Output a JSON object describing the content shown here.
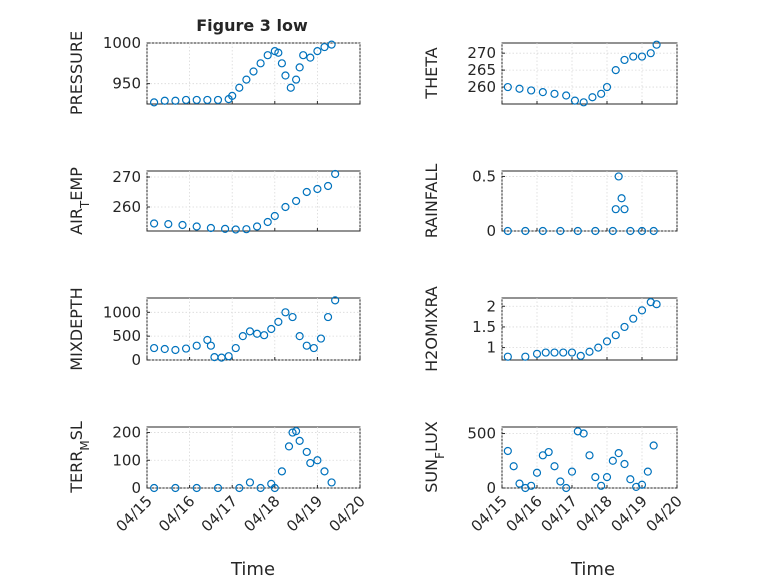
{
  "figure": {
    "title": "Figure 3 low"
  },
  "chart_data": [
    {
      "type": "scatter",
      "ylabel": "PRESSURE",
      "ylim": [
        925,
        1000
      ],
      "yticks": [
        "950",
        "1000"
      ],
      "ytick_values": [
        950,
        1000
      ],
      "color": "#0072BD",
      "x": [
        "04/15 04:00",
        "04/15 10:00",
        "04/15 16:00",
        "04/15 22:00",
        "04/16 04:00",
        "04/16 10:00",
        "04/16 16:00",
        "04/16 22:00",
        "04/17 00:00",
        "04/17 04:00",
        "04/17 08:00",
        "04/17 12:00",
        "04/17 16:00",
        "04/17 20:00",
        "04/18 00:00",
        "04/18 02:00",
        "04/18 04:00",
        "04/18 06:00",
        "04/18 09:00",
        "04/18 12:00",
        "04/18 14:00",
        "04/18 16:00",
        "04/18 20:00",
        "04/19 00:00",
        "04/19 04:00",
        "04/19 08:00"
      ],
      "y": [
        927,
        929,
        929,
        930,
        930,
        930,
        930,
        931,
        935,
        945,
        955,
        965,
        975,
        985,
        990,
        988,
        975,
        960,
        945,
        955,
        970,
        985,
        982,
        990,
        995,
        998
      ]
    },
    {
      "type": "scatter",
      "ylabel": "THETA",
      "ylim": [
        255,
        273
      ],
      "yticks": [
        "260",
        "265",
        "270"
      ],
      "ytick_values": [
        260,
        265,
        270
      ],
      "color": "#0072BD",
      "x": [
        "04/15 04:00",
        "04/15 12:00",
        "04/15 20:00",
        "04/16 04:00",
        "04/16 12:00",
        "04/16 20:00",
        "04/17 02:00",
        "04/17 08:00",
        "04/17 14:00",
        "04/17 20:00",
        "04/18 00:00",
        "04/18 06:00",
        "04/18 12:00",
        "04/18 18:00",
        "04/19 00:00",
        "04/19 06:00",
        "04/19 10:00"
      ],
      "y": [
        260,
        259.5,
        259,
        258.5,
        258,
        257.5,
        256,
        255.5,
        257,
        258,
        260,
        265,
        268,
        269,
        269,
        270,
        272.5
      ]
    },
    {
      "type": "scatter",
      "ylabel": "AIR_TEMP",
      "ylim": [
        252,
        272
      ],
      "yticks": [
        "260",
        "270"
      ],
      "ytick_values": [
        260,
        270
      ],
      "color": "#0072BD",
      "x": [
        "04/15 04:00",
        "04/15 12:00",
        "04/15 20:00",
        "04/16 04:00",
        "04/16 12:00",
        "04/16 20:00",
        "04/17 02:00",
        "04/17 08:00",
        "04/17 14:00",
        "04/17 20:00",
        "04/18 00:00",
        "04/18 06:00",
        "04/18 12:00",
        "04/18 18:00",
        "04/19 00:00",
        "04/19 06:00",
        "04/19 10:00"
      ],
      "y": [
        254.5,
        254.3,
        254,
        253.5,
        253,
        252.7,
        252.5,
        252.6,
        253.5,
        255,
        257,
        260,
        262,
        265,
        266,
        267,
        271
      ]
    },
    {
      "type": "scatter",
      "ylabel": "MIXDEPTH",
      "ylim": [
        0,
        1300
      ],
      "yticks": [
        "0",
        "500",
        "1000"
      ],
      "ytick_values": [
        0,
        500,
        1000
      ],
      "color": "#0072BD",
      "x": [
        "04/15 04:00",
        "04/15 10:00",
        "04/15 16:00",
        "04/15 22:00",
        "04/16 04:00",
        "04/16 10:00",
        "04/16 12:00",
        "04/16 14:00",
        "04/16 18:00",
        "04/16 22:00",
        "04/17 02:00",
        "04/17 06:00",
        "04/17 10:00",
        "04/17 14:00",
        "04/17 18:00",
        "04/17 22:00",
        "04/18 02:00",
        "04/18 06:00",
        "04/18 10:00",
        "04/18 14:00",
        "04/18 18:00",
        "04/18 22:00",
        "04/19 02:00",
        "04/19 06:00",
        "04/19 10:00"
      ],
      "y": [
        250,
        230,
        210,
        240,
        300,
        420,
        300,
        60,
        50,
        80,
        250,
        500,
        600,
        550,
        520,
        650,
        800,
        1000,
        900,
        500,
        300,
        250,
        450,
        900,
        1250
      ]
    },
    {
      "type": "scatter",
      "ylabel": "H2OMIXRA",
      "ylim": [
        0.7,
        2.2
      ],
      "yticks": [
        "1",
        "1.5",
        "2"
      ],
      "ytick_values": [
        1,
        1.5,
        2
      ],
      "color": "#0072BD",
      "x": [
        "04/15 04:00",
        "04/15 16:00",
        "04/16 00:00",
        "04/16 06:00",
        "04/16 12:00",
        "04/16 18:00",
        "04/17 00:00",
        "04/17 06:00",
        "04/17 12:00",
        "04/17 18:00",
        "04/18 00:00",
        "04/18 06:00",
        "04/18 12:00",
        "04/18 18:00",
        "04/19 00:00",
        "04/19 06:00",
        "04/19 10:00"
      ],
      "y": [
        0.78,
        0.78,
        0.85,
        0.88,
        0.88,
        0.88,
        0.88,
        0.8,
        0.9,
        1.0,
        1.15,
        1.3,
        1.5,
        1.7,
        1.9,
        2.1,
        2.05
      ]
    },
    {
      "type": "scatter",
      "ylabel": "RAINFALL",
      "ylim": [
        0,
        0.55
      ],
      "yticks": [
        "0",
        "0.5"
      ],
      "ytick_values": [
        0,
        0.5
      ],
      "color": "#0072BD",
      "x": [
        "04/15 04:00",
        "04/15 16:00",
        "04/16 04:00",
        "04/16 16:00",
        "04/17 04:00",
        "04/17 16:00",
        "04/18 04:00",
        "04/18 06:00",
        "04/18 08:00",
        "04/18 10:00",
        "04/18 12:00",
        "04/18 16:00",
        "04/19 00:00",
        "04/19 08:00"
      ],
      "y": [
        0,
        0,
        0,
        0,
        0,
        0,
        0,
        0.2,
        0.5,
        0.3,
        0.2,
        0,
        0,
        0
      ]
    },
    {
      "type": "scatter",
      "ylabel": "TERR_MSL",
      "ylim": [
        0,
        220
      ],
      "yticks": [
        "0",
        "100",
        "200"
      ],
      "ytick_values": [
        0,
        100,
        200
      ],
      "color": "#0072BD",
      "x": [
        "04/15 04:00",
        "04/15 16:00",
        "04/16 04:00",
        "04/16 16:00",
        "04/17 04:00",
        "04/17 10:00",
        "04/17 16:00",
        "04/17 22:00",
        "04/18 00:00",
        "04/18 04:00",
        "04/18 08:00",
        "04/18 10:00",
        "04/18 12:00",
        "04/18 14:00",
        "04/18 18:00",
        "04/18 20:00",
        "04/19 00:00",
        "04/19 04:00",
        "04/19 08:00"
      ],
      "y": [
        0,
        0,
        0,
        0,
        0,
        20,
        0,
        15,
        0,
        60,
        150,
        200,
        205,
        170,
        130,
        90,
        100,
        60,
        20
      ]
    },
    {
      "type": "scatter",
      "ylabel": "SUN_FLUX",
      "ylim": [
        0,
        560
      ],
      "yticks": [
        "0",
        "500"
      ],
      "ytick_values": [
        0,
        500
      ],
      "color": "#0072BD",
      "x": [
        "04/15 04:00",
        "04/15 08:00",
        "04/15 12:00",
        "04/15 16:00",
        "04/15 20:00",
        "04/16 00:00",
        "04/16 04:00",
        "04/16 08:00",
        "04/16 12:00",
        "04/16 16:00",
        "04/16 20:00",
        "04/17 00:00",
        "04/17 04:00",
        "04/17 08:00",
        "04/17 12:00",
        "04/17 16:00",
        "04/17 20:00",
        "04/18 00:00",
        "04/18 04:00",
        "04/18 08:00",
        "04/18 12:00",
        "04/18 16:00",
        "04/18 20:00",
        "04/19 00:00",
        "04/19 04:00",
        "04/19 08:00"
      ],
      "y": [
        340,
        200,
        40,
        0,
        20,
        140,
        300,
        330,
        200,
        60,
        0,
        150,
        520,
        500,
        300,
        100,
        20,
        100,
        250,
        320,
        220,
        80,
        10,
        30,
        150,
        390
      ]
    }
  ],
  "x_axis": {
    "label": "Time",
    "ticks": [
      "04/15",
      "04/16",
      "04/17",
      "04/18",
      "04/19",
      "04/20"
    ],
    "range": [
      "04/15",
      "04/20"
    ]
  }
}
